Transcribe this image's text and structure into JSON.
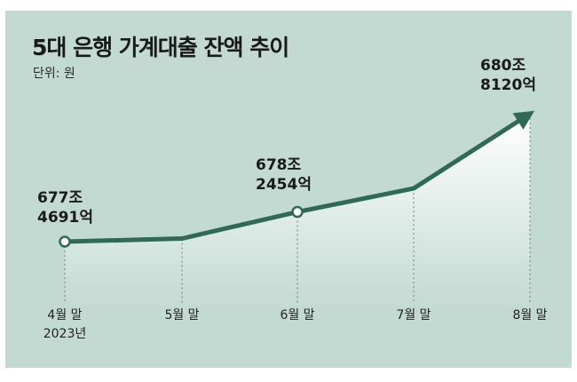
{
  "title": "5대 은행 가계대출 잔액 추이",
  "unit": "단위: 원",
  "colors": {
    "background": "#c3dad3",
    "line": "#2f6a55",
    "fill_top": "#ffffff",
    "dashed": "#6f7f79"
  },
  "annotations": [
    {
      "line1": "677조",
      "line2": "4691억"
    },
    {
      "line1": "678조",
      "line2": "2454억"
    },
    {
      "line1": "680조",
      "line2": "8120억"
    }
  ],
  "ticks": [
    {
      "label": "4월 말",
      "sub": "2023년"
    },
    {
      "label": "5월 말",
      "sub": ""
    },
    {
      "label": "6월 말",
      "sub": ""
    },
    {
      "label": "7월 말",
      "sub": ""
    },
    {
      "label": "8월 말",
      "sub": ""
    }
  ],
  "chart_data": {
    "type": "line",
    "title": "5대 은행 가계대출 잔액 추이",
    "subtitle": "단위: 원",
    "categories": [
      "4월 말",
      "5월 말",
      "6월 말",
      "7월 말",
      "8월 말"
    ],
    "x_sublabel": "2023년",
    "values": [
      6774691,
      6775500,
      6782454,
      6788600,
      6808120
    ],
    "value_unit": "억",
    "labeled_points": [
      0,
      2,
      4
    ],
    "grid": false,
    "legend": "none"
  }
}
